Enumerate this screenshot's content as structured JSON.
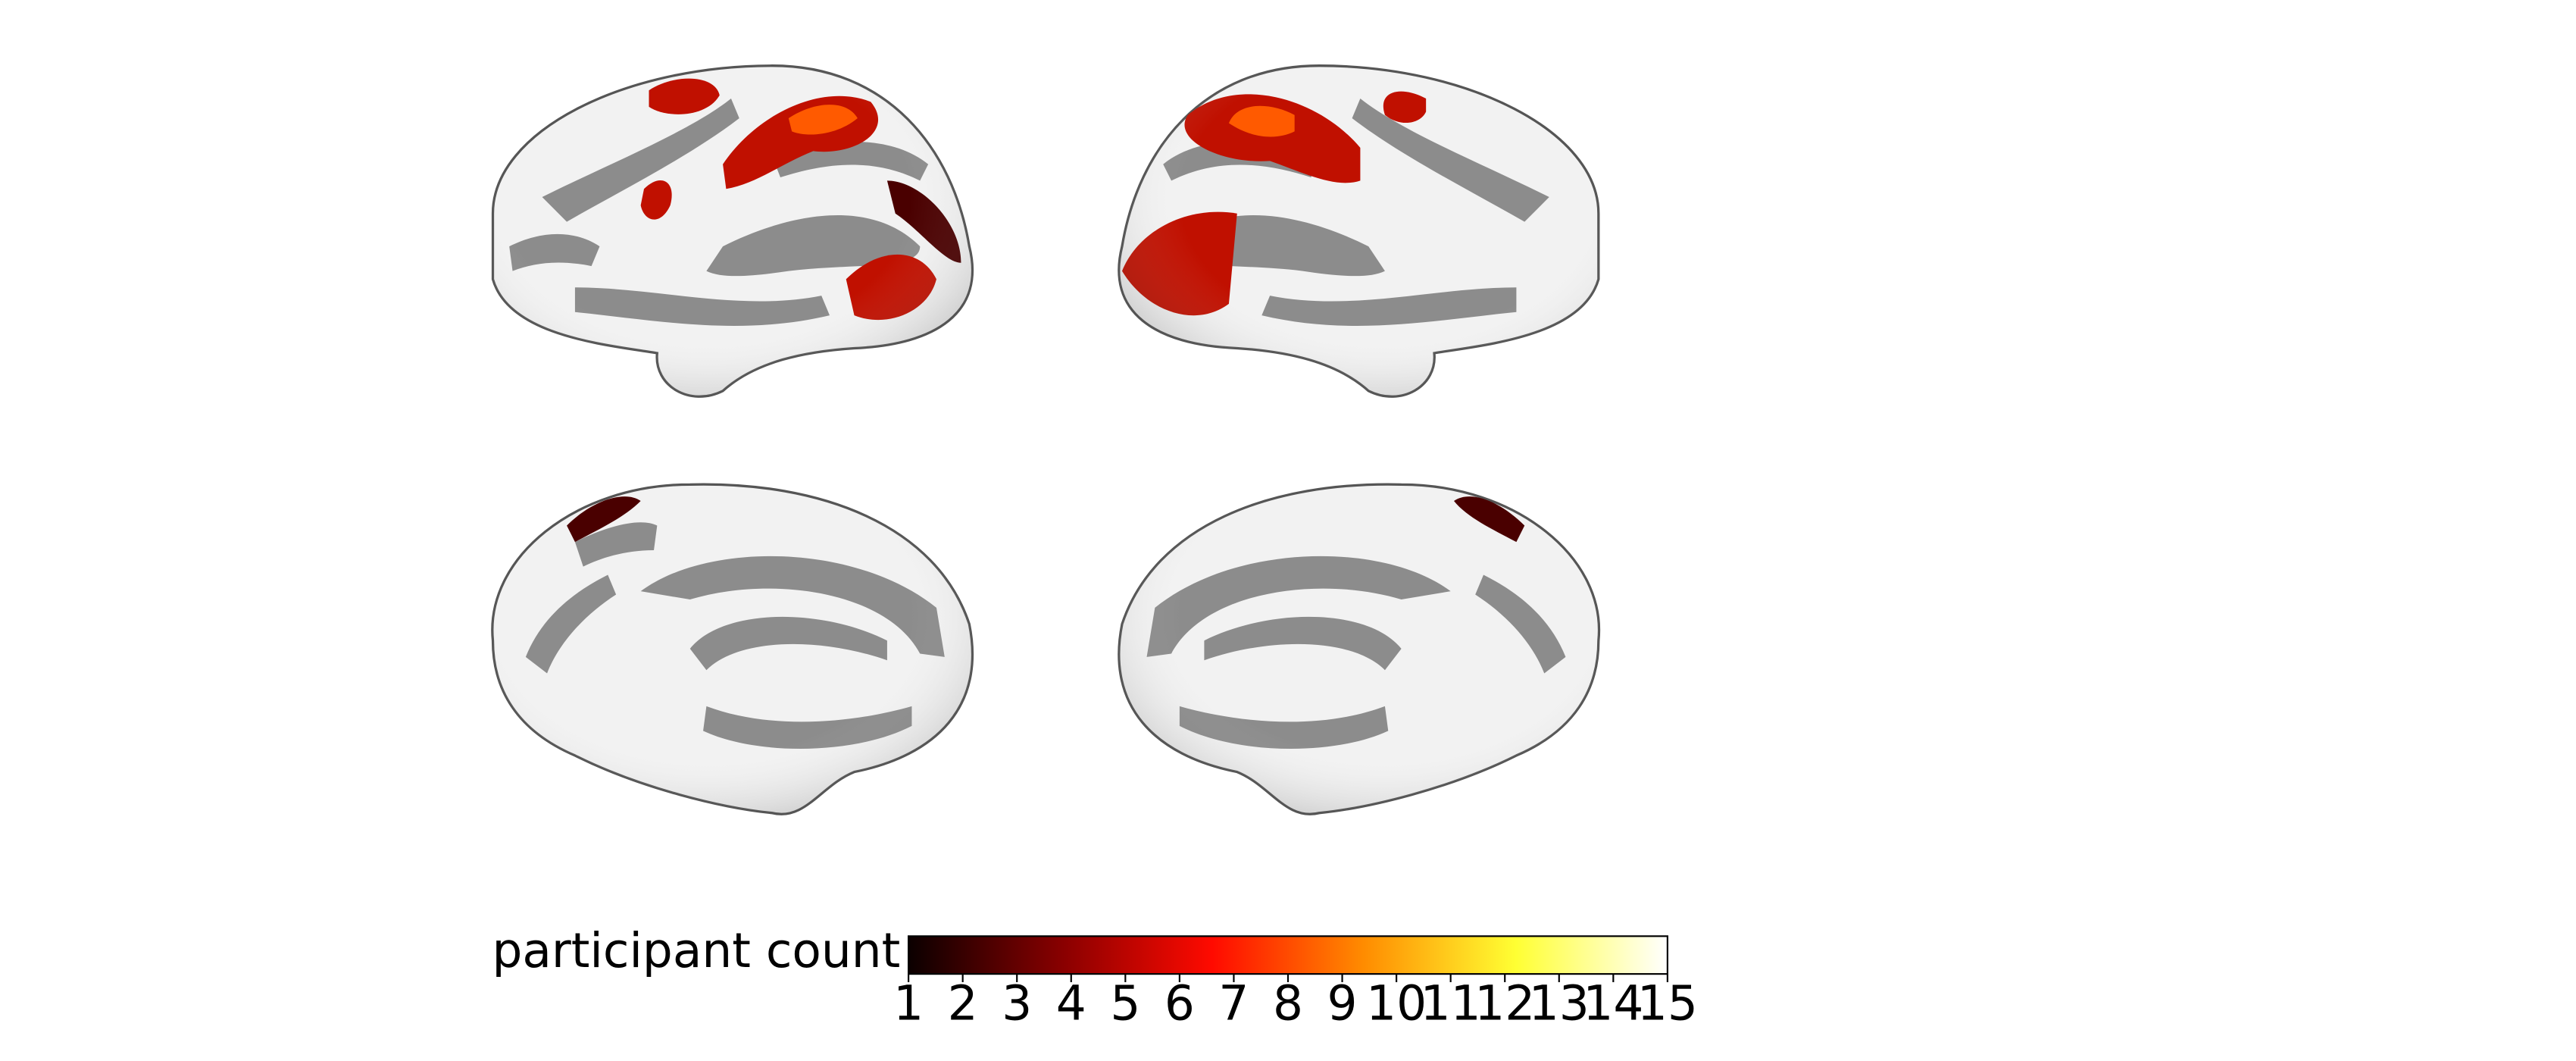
{
  "chart_data": {
    "type": "colorbar",
    "label": "participant count",
    "colormap": "hot",
    "colors": [
      "#0b0000",
      "#870000",
      "#ff0a00",
      "#ff8c00",
      "#ffff33",
      "#ffffff"
    ],
    "clim": [
      1,
      15
    ],
    "ticks": [
      1,
      2,
      3,
      4,
      5,
      6,
      7,
      8,
      9,
      10,
      11,
      12,
      13,
      14,
      15
    ]
  }
}
